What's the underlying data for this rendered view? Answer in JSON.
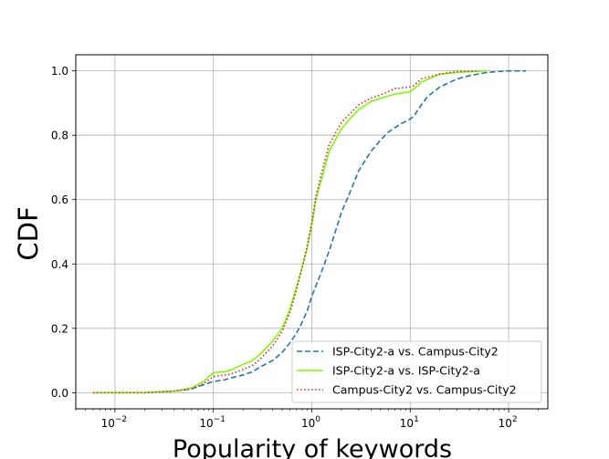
{
  "chart_data": {
    "type": "line",
    "title": "",
    "xlabel": "Popularity of keywords",
    "ylabel": "CDF",
    "xscale": "log",
    "xlim": [
      0.004,
      250
    ],
    "ylim": [
      -0.05,
      1.05
    ],
    "grid": true,
    "legend_position": "lower-right",
    "x_ticks": [
      {
        "value": 0.01,
        "base": "10",
        "exp": "−2"
      },
      {
        "value": 0.1,
        "base": "10",
        "exp": "−1"
      },
      {
        "value": 1,
        "base": "10",
        "exp": "0"
      },
      {
        "value": 10,
        "base": "10",
        "exp": "1"
      },
      {
        "value": 100,
        "base": "10",
        "exp": "2"
      }
    ],
    "y_ticks": [
      {
        "value": 0.0,
        "label": "0.0"
      },
      {
        "value": 0.2,
        "label": "0.2"
      },
      {
        "value": 0.4,
        "label": "0.4"
      },
      {
        "value": 0.6,
        "label": "0.6"
      },
      {
        "value": 0.8,
        "label": "0.8"
      },
      {
        "value": 1.0,
        "label": "1.0"
      }
    ],
    "series": [
      {
        "name": "ISP-City2-a vs. Campus-City2",
        "color": "#1f77b4",
        "style": "dashed",
        "points": [
          [
            0.006,
            0.0
          ],
          [
            0.02,
            0.0
          ],
          [
            0.04,
            0.005
          ],
          [
            0.06,
            0.012
          ],
          [
            0.08,
            0.025
          ],
          [
            0.1,
            0.035
          ],
          [
            0.13,
            0.04
          ],
          [
            0.16,
            0.048
          ],
          [
            0.2,
            0.055
          ],
          [
            0.25,
            0.065
          ],
          [
            0.3,
            0.08
          ],
          [
            0.4,
            0.1
          ],
          [
            0.5,
            0.125
          ],
          [
            0.6,
            0.155
          ],
          [
            0.7,
            0.185
          ],
          [
            0.8,
            0.22
          ],
          [
            0.9,
            0.255
          ],
          [
            1.0,
            0.3
          ],
          [
            1.2,
            0.36
          ],
          [
            1.5,
            0.44
          ],
          [
            2.0,
            0.56
          ],
          [
            2.5,
            0.63
          ],
          [
            3.0,
            0.69
          ],
          [
            4.0,
            0.75
          ],
          [
            5.0,
            0.785
          ],
          [
            6.0,
            0.81
          ],
          [
            8.0,
            0.835
          ],
          [
            10.0,
            0.85
          ],
          [
            11.0,
            0.86
          ],
          [
            12.0,
            0.88
          ],
          [
            15.0,
            0.92
          ],
          [
            20.0,
            0.95
          ],
          [
            30.0,
            0.975
          ],
          [
            40.0,
            0.985
          ],
          [
            60.0,
            0.995
          ],
          [
            100.0,
            1.0
          ],
          [
            150.0,
            1.0
          ]
        ]
      },
      {
        "name": "ISP-City2-a vs. ISP-City2-a",
        "color": "#7cfc00",
        "style": "solid",
        "points": [
          [
            0.006,
            0.0
          ],
          [
            0.02,
            0.0
          ],
          [
            0.04,
            0.005
          ],
          [
            0.06,
            0.015
          ],
          [
            0.08,
            0.035
          ],
          [
            0.09,
            0.05
          ],
          [
            0.1,
            0.062
          ],
          [
            0.13,
            0.065
          ],
          [
            0.15,
            0.07
          ],
          [
            0.2,
            0.088
          ],
          [
            0.25,
            0.1
          ],
          [
            0.3,
            0.12
          ],
          [
            0.4,
            0.16
          ],
          [
            0.5,
            0.2
          ],
          [
            0.6,
            0.26
          ],
          [
            0.7,
            0.33
          ],
          [
            0.8,
            0.39
          ],
          [
            0.9,
            0.45
          ],
          [
            1.0,
            0.52
          ],
          [
            1.1,
            0.6
          ],
          [
            1.3,
            0.68
          ],
          [
            1.5,
            0.75
          ],
          [
            2.0,
            0.82
          ],
          [
            2.5,
            0.855
          ],
          [
            3.0,
            0.88
          ],
          [
            4.0,
            0.905
          ],
          [
            5.0,
            0.915
          ],
          [
            7.0,
            0.928
          ],
          [
            10.0,
            0.935
          ],
          [
            11.0,
            0.945
          ],
          [
            13.0,
            0.965
          ],
          [
            20.0,
            0.99
          ],
          [
            30.0,
            0.995
          ],
          [
            60.0,
            1.0
          ]
        ]
      },
      {
        "name": "Campus-City2 vs. Campus-City2",
        "color": "#d62728",
        "style": "dotted",
        "points": [
          [
            0.006,
            0.0
          ],
          [
            0.02,
            0.0
          ],
          [
            0.04,
            0.005
          ],
          [
            0.06,
            0.012
          ],
          [
            0.08,
            0.028
          ],
          [
            0.09,
            0.04
          ],
          [
            0.1,
            0.05
          ],
          [
            0.13,
            0.055
          ],
          [
            0.15,
            0.058
          ],
          [
            0.2,
            0.072
          ],
          [
            0.25,
            0.085
          ],
          [
            0.3,
            0.105
          ],
          [
            0.4,
            0.145
          ],
          [
            0.5,
            0.19
          ],
          [
            0.6,
            0.25
          ],
          [
            0.7,
            0.32
          ],
          [
            0.8,
            0.39
          ],
          [
            0.9,
            0.46
          ],
          [
            1.0,
            0.53
          ],
          [
            1.1,
            0.61
          ],
          [
            1.3,
            0.7
          ],
          [
            1.5,
            0.77
          ],
          [
            2.0,
            0.84
          ],
          [
            2.5,
            0.87
          ],
          [
            3.0,
            0.895
          ],
          [
            4.0,
            0.915
          ],
          [
            5.0,
            0.925
          ],
          [
            7.0,
            0.945
          ],
          [
            10.0,
            0.95
          ],
          [
            11.0,
            0.955
          ],
          [
            13.0,
            0.975
          ],
          [
            20.0,
            0.99
          ],
          [
            30.0,
            0.998
          ],
          [
            50.0,
            1.0
          ]
        ]
      }
    ]
  }
}
